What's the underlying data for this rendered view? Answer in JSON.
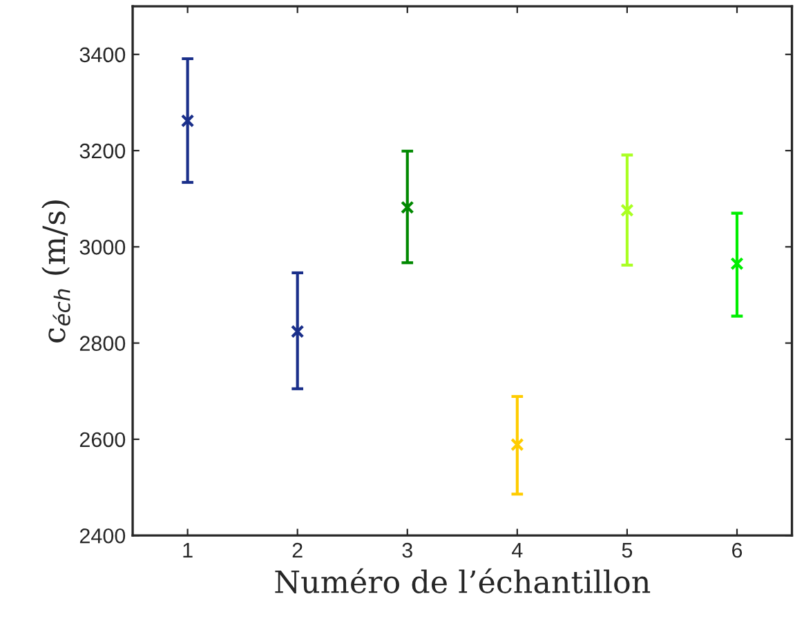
{
  "chart_data": {
    "type": "scatter",
    "xlabel": "Numéro de l’échantillon",
    "ylabel": "c$_{éch}$ (m/s)",
    "x": [
      1,
      2,
      3,
      4,
      5,
      6
    ],
    "values": [
      3262,
      2824,
      3082,
      2589,
      3076,
      2965
    ],
    "errors": [
      [
        3134,
        3391
      ],
      [
        2705,
        2946
      ],
      [
        2967,
        3199
      ],
      [
        2486,
        2689
      ],
      [
        2962,
        3191
      ],
      [
        2856,
        3070
      ]
    ],
    "colors": [
      "#1a2f8a",
      "#1a2f8a",
      "#008800",
      "#ffcc00",
      "#aaff22",
      "#00ee00"
    ],
    "marker": "cross",
    "grid": false,
    "xlim": [
      0.5,
      6.5
    ],
    "xticks": [
      1,
      2,
      3,
      4,
      5,
      6
    ],
    "ylim": [
      2400,
      3500
    ],
    "yticks": [
      2400,
      2600,
      2800,
      3000,
      3200,
      3400
    ]
  }
}
